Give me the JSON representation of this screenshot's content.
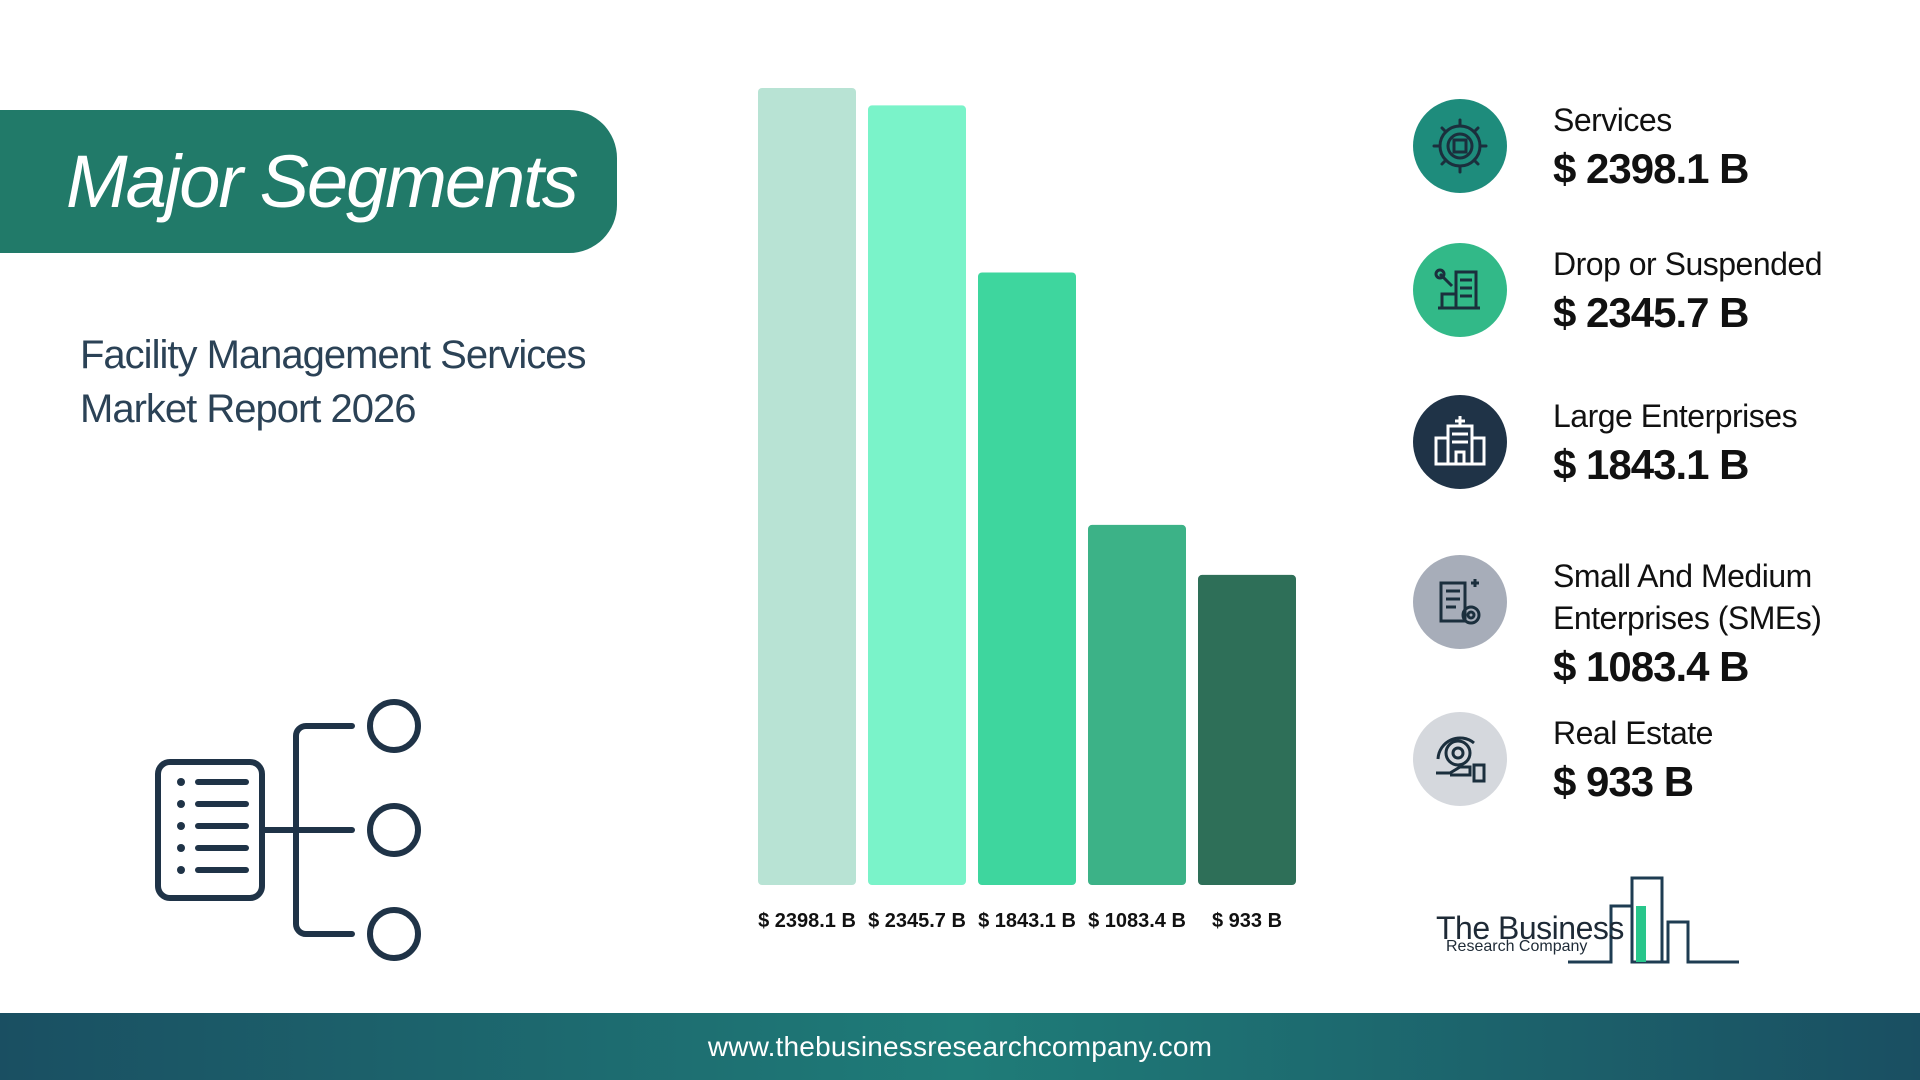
{
  "header": {
    "title": "Major Segments"
  },
  "subtitle": {
    "line1": "Facility Management Services",
    "line2": "Market Report 2026"
  },
  "chart_data": {
    "type": "bar",
    "categories": [
      "Services",
      "Drop or Suspended",
      "Large Enterprises",
      "Small And Medium Enterprises (SMEs)",
      "Real Estate"
    ],
    "values": [
      2398.1,
      2345.7,
      1843.1,
      1083.4,
      933
    ],
    "value_labels": [
      "$ 2398.1 B",
      "$ 2345.7 B",
      "$ 1843.1 B",
      "$ 1083.4 B",
      "$ 933 B"
    ],
    "colors": [
      "#b8e3d4",
      "#7af3c9",
      "#3ed69e",
      "#3cb287",
      "#2e6f58"
    ],
    "ylim": [
      0,
      2398.1
    ],
    "grid": false,
    "title": "",
    "xlabel": "",
    "ylabel": ""
  },
  "segments": [
    {
      "name": "Services",
      "value": "$ 2398.1 B",
      "icon": "gear-building-icon",
      "color": "#1e8c7c"
    },
    {
      "name": "Drop or Suspended",
      "value": "$ 2345.7 B",
      "icon": "building-tools-icon",
      "color": "#32b988"
    },
    {
      "name": "Large Enterprises",
      "value": "$ 1843.1 B",
      "icon": "hospital-building-icon",
      "color": "#1f3347"
    },
    {
      "name": "Small And Medium",
      "name_line2": "Enterprises (SMEs)",
      "value": "$ 1083.4 B",
      "icon": "office-gear-icon",
      "color": "#a7adb9"
    },
    {
      "name": "Real Estate",
      "value": "$ 933 B",
      "icon": "hand-gear-icon",
      "color": "#d5d8dd"
    }
  ],
  "logo": {
    "line1": "The Business",
    "line2": "Research Company"
  },
  "footer": {
    "url": "www.thebusinessresearchcompany.com"
  }
}
